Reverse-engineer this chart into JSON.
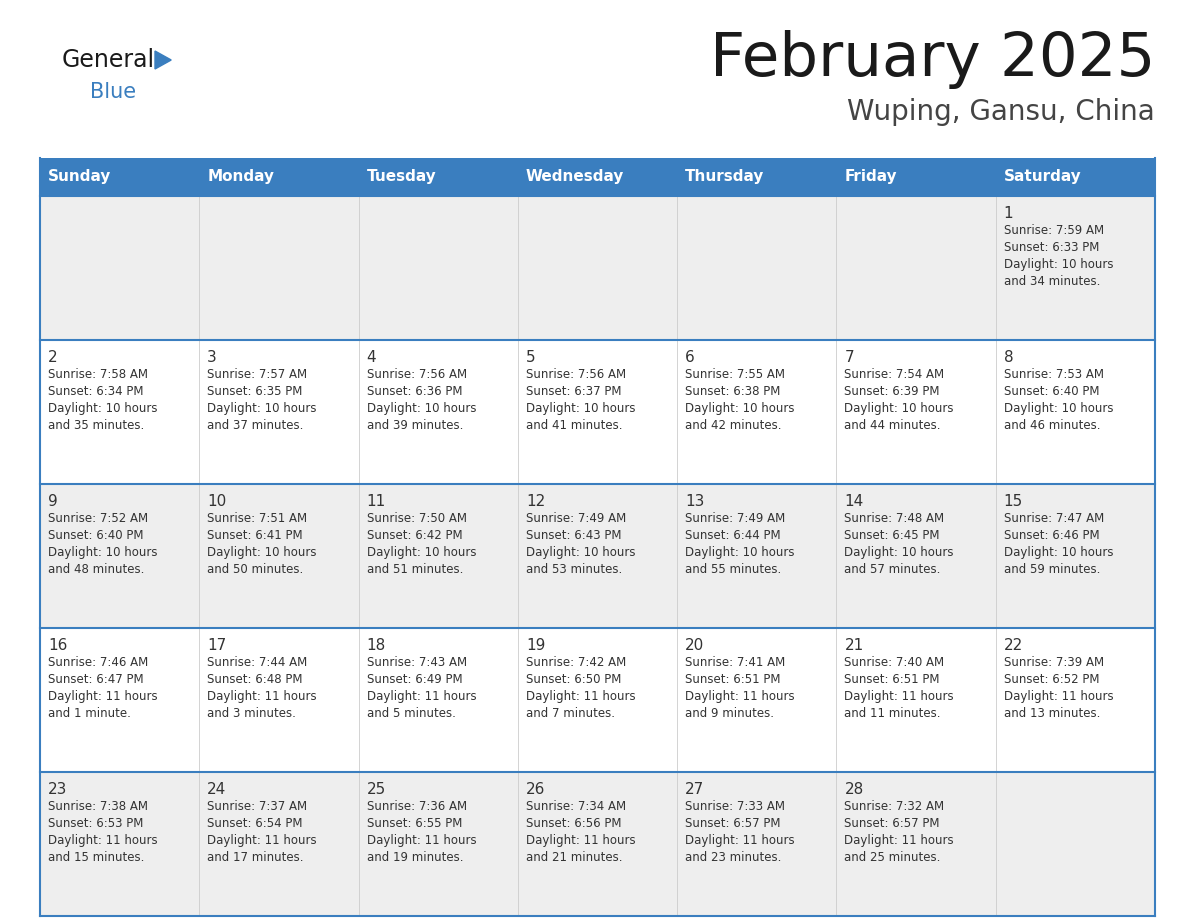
{
  "title": "February 2025",
  "subtitle": "Wuping, Gansu, China",
  "header_color": "#3a7ebf",
  "header_text_color": "#ffffff",
  "cell_bg_white": "#ffffff",
  "cell_bg_gray": "#eeeeee",
  "border_color": "#3a7ebf",
  "days_of_week": [
    "Sunday",
    "Monday",
    "Tuesday",
    "Wednesday",
    "Thursday",
    "Friday",
    "Saturday"
  ],
  "weeks": [
    [
      {
        "day": null,
        "info": null
      },
      {
        "day": null,
        "info": null
      },
      {
        "day": null,
        "info": null
      },
      {
        "day": null,
        "info": null
      },
      {
        "day": null,
        "info": null
      },
      {
        "day": null,
        "info": null
      },
      {
        "day": 1,
        "info": "Sunrise: 7:59 AM\nSunset: 6:33 PM\nDaylight: 10 hours\nand 34 minutes."
      }
    ],
    [
      {
        "day": 2,
        "info": "Sunrise: 7:58 AM\nSunset: 6:34 PM\nDaylight: 10 hours\nand 35 minutes."
      },
      {
        "day": 3,
        "info": "Sunrise: 7:57 AM\nSunset: 6:35 PM\nDaylight: 10 hours\nand 37 minutes."
      },
      {
        "day": 4,
        "info": "Sunrise: 7:56 AM\nSunset: 6:36 PM\nDaylight: 10 hours\nand 39 minutes."
      },
      {
        "day": 5,
        "info": "Sunrise: 7:56 AM\nSunset: 6:37 PM\nDaylight: 10 hours\nand 41 minutes."
      },
      {
        "day": 6,
        "info": "Sunrise: 7:55 AM\nSunset: 6:38 PM\nDaylight: 10 hours\nand 42 minutes."
      },
      {
        "day": 7,
        "info": "Sunrise: 7:54 AM\nSunset: 6:39 PM\nDaylight: 10 hours\nand 44 minutes."
      },
      {
        "day": 8,
        "info": "Sunrise: 7:53 AM\nSunset: 6:40 PM\nDaylight: 10 hours\nand 46 minutes."
      }
    ],
    [
      {
        "day": 9,
        "info": "Sunrise: 7:52 AM\nSunset: 6:40 PM\nDaylight: 10 hours\nand 48 minutes."
      },
      {
        "day": 10,
        "info": "Sunrise: 7:51 AM\nSunset: 6:41 PM\nDaylight: 10 hours\nand 50 minutes."
      },
      {
        "day": 11,
        "info": "Sunrise: 7:50 AM\nSunset: 6:42 PM\nDaylight: 10 hours\nand 51 minutes."
      },
      {
        "day": 12,
        "info": "Sunrise: 7:49 AM\nSunset: 6:43 PM\nDaylight: 10 hours\nand 53 minutes."
      },
      {
        "day": 13,
        "info": "Sunrise: 7:49 AM\nSunset: 6:44 PM\nDaylight: 10 hours\nand 55 minutes."
      },
      {
        "day": 14,
        "info": "Sunrise: 7:48 AM\nSunset: 6:45 PM\nDaylight: 10 hours\nand 57 minutes."
      },
      {
        "day": 15,
        "info": "Sunrise: 7:47 AM\nSunset: 6:46 PM\nDaylight: 10 hours\nand 59 minutes."
      }
    ],
    [
      {
        "day": 16,
        "info": "Sunrise: 7:46 AM\nSunset: 6:47 PM\nDaylight: 11 hours\nand 1 minute."
      },
      {
        "day": 17,
        "info": "Sunrise: 7:44 AM\nSunset: 6:48 PM\nDaylight: 11 hours\nand 3 minutes."
      },
      {
        "day": 18,
        "info": "Sunrise: 7:43 AM\nSunset: 6:49 PM\nDaylight: 11 hours\nand 5 minutes."
      },
      {
        "day": 19,
        "info": "Sunrise: 7:42 AM\nSunset: 6:50 PM\nDaylight: 11 hours\nand 7 minutes."
      },
      {
        "day": 20,
        "info": "Sunrise: 7:41 AM\nSunset: 6:51 PM\nDaylight: 11 hours\nand 9 minutes."
      },
      {
        "day": 21,
        "info": "Sunrise: 7:40 AM\nSunset: 6:51 PM\nDaylight: 11 hours\nand 11 minutes."
      },
      {
        "day": 22,
        "info": "Sunrise: 7:39 AM\nSunset: 6:52 PM\nDaylight: 11 hours\nand 13 minutes."
      }
    ],
    [
      {
        "day": 23,
        "info": "Sunrise: 7:38 AM\nSunset: 6:53 PM\nDaylight: 11 hours\nand 15 minutes."
      },
      {
        "day": 24,
        "info": "Sunrise: 7:37 AM\nSunset: 6:54 PM\nDaylight: 11 hours\nand 17 minutes."
      },
      {
        "day": 25,
        "info": "Sunrise: 7:36 AM\nSunset: 6:55 PM\nDaylight: 11 hours\nand 19 minutes."
      },
      {
        "day": 26,
        "info": "Sunrise: 7:34 AM\nSunset: 6:56 PM\nDaylight: 11 hours\nand 21 minutes."
      },
      {
        "day": 27,
        "info": "Sunrise: 7:33 AM\nSunset: 6:57 PM\nDaylight: 11 hours\nand 23 minutes."
      },
      {
        "day": 28,
        "info": "Sunrise: 7:32 AM\nSunset: 6:57 PM\nDaylight: 11 hours\nand 25 minutes."
      },
      {
        "day": null,
        "info": null
      }
    ]
  ],
  "logo_general_color": "#1a1a1a",
  "logo_blue_color": "#3a7ebf",
  "logo_triangle_color": "#3a7ebf"
}
